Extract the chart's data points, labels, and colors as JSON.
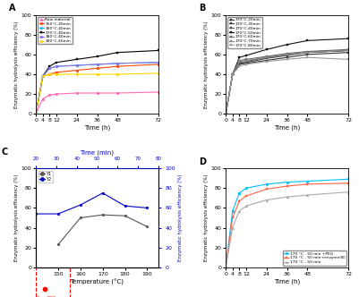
{
  "A": {
    "time": [
      0,
      4,
      8,
      12,
      24,
      36,
      48,
      72
    ],
    "series": [
      {
        "label": "Raw material",
        "color": "#FF69B4",
        "marker": "o",
        "values": [
          0,
          15,
          19,
          20,
          21,
          21,
          21,
          22
        ]
      },
      {
        "label": "150°C-40min",
        "color": "#FF4500",
        "marker": "o",
        "values": [
          0,
          38,
          40,
          42,
          44,
          46,
          48,
          50
        ]
      },
      {
        "label": "160°C-40min",
        "color": "#00BFFF",
        "marker": "o",
        "values": [
          0,
          38,
          46,
          48,
          49,
          50,
          51,
          52
        ]
      },
      {
        "label": "170°C-40min",
        "color": "#000000",
        "marker": "s",
        "values": [
          0,
          38,
          48,
          52,
          55,
          58,
          62,
          64
        ]
      },
      {
        "label": "180°C-40min",
        "color": "#9370DB",
        "marker": "o",
        "values": [
          0,
          38,
          46,
          48,
          49,
          50,
          51,
          52
        ]
      },
      {
        "label": "190°C-40min",
        "color": "#FFD700",
        "marker": "o",
        "values": [
          0,
          38,
          40,
          40,
          40,
          40,
          40,
          41
        ]
      }
    ],
    "xlabel": "Time (h)",
    "ylabel": "Enzymatic hydrolysis efficiency (%)",
    "xlim": [
      0,
      72
    ],
    "ylim": [
      0,
      100
    ],
    "xticks": [
      0,
      4,
      8,
      12,
      24,
      36,
      48,
      72
    ]
  },
  "B": {
    "time": [
      0,
      4,
      8,
      12,
      24,
      36,
      48,
      72
    ],
    "series": [
      {
        "label": "170°C-20min",
        "color": "#333333",
        "marker": "s",
        "values": [
          0,
          40,
          50,
          51,
          54,
          57,
          60,
          62
        ]
      },
      {
        "label": "170°C-30min",
        "color": "#444444",
        "marker": "s",
        "values": [
          0,
          40,
          51,
          52,
          56,
          59,
          62,
          64
        ]
      },
      {
        "label": "170°C-40min",
        "color": "#555555",
        "marker": "s",
        "values": [
          0,
          40,
          52,
          53,
          57,
          60,
          62,
          64
        ]
      },
      {
        "label": "170°C-50min",
        "color": "#111111",
        "marker": "s",
        "values": [
          0,
          40,
          57,
          59,
          65,
          70,
          74,
          76
        ]
      },
      {
        "label": "170°C-60min",
        "color": "#666666",
        "marker": "s",
        "values": [
          0,
          40,
          54,
          55,
          58,
          61,
          63,
          65
        ]
      },
      {
        "label": "170°C-70min",
        "color": "#888888",
        "marker": "s",
        "values": [
          0,
          40,
          53,
          54,
          57,
          60,
          62,
          64
        ]
      },
      {
        "label": "170°C-80min",
        "color": "#999999",
        "marker": "s",
        "values": [
          0,
          40,
          48,
          50,
          53,
          55,
          57,
          55
        ]
      }
    ],
    "xlabel": "Time (h)",
    "ylabel": "Enzymatic hydrolysis efficiency (%)",
    "xlim": [
      0,
      72
    ],
    "ylim": [
      0,
      100
    ],
    "xticks": [
      0,
      4,
      8,
      12,
      24,
      36,
      48,
      72
    ]
  },
  "C": {
    "temperature": [
      150,
      160,
      170,
      180,
      190
    ],
    "temperature_Y2": [
      140,
      150,
      160,
      170,
      180,
      190
    ],
    "time_top": [
      20,
      30,
      40,
      50,
      60,
      70,
      80
    ],
    "time_top_pos": [
      20,
      30,
      40,
      50,
      60,
      70,
      80
    ],
    "Y1": {
      "label": "Y1",
      "color": "#555555",
      "marker": "o",
      "values": [
        23,
        50,
        53,
        52,
        41
      ]
    },
    "Y2": {
      "label": "Y2",
      "color": "#0000CD",
      "marker": "o",
      "values": [
        54,
        54,
        63,
        75,
        62,
        60
      ]
    },
    "raw_bss_val": 23,
    "xlabel": "Temperature (°C)",
    "ylabel_left": "Enzymatic hydrolysis efficiency (%)",
    "ylabel_right": "Enzymatic hydrolysis efficiency (%)",
    "xlim_temp": [
      140,
      195
    ],
    "xlim_time": [
      20,
      80
    ],
    "ylim_left": [
      0,
      100
    ],
    "ylim_right": [
      0,
      100
    ],
    "xticks_temp": [
      150,
      160,
      170,
      180,
      190
    ]
  },
  "D": {
    "time": [
      0,
      4,
      8,
      12,
      24,
      36,
      48,
      72
    ],
    "series": [
      {
        "label": "170 °C - 50 min +PEG",
        "color": "#00BFFF",
        "marker": "o",
        "values": [
          0,
          57,
          75,
          80,
          84,
          86,
          87,
          89
        ]
      },
      {
        "label": "170 °C - 50 min+enzyme(B)",
        "color": "#FF6347",
        "marker": "s",
        "values": [
          0,
          50,
          67,
          72,
          79,
          82,
          84,
          85
        ]
      },
      {
        "label": "170 °C - 50 min",
        "color": "#A9A9A9",
        "marker": "^",
        "values": [
          0,
          40,
          57,
          62,
          68,
          71,
          73,
          76
        ]
      }
    ],
    "xlabel": "Time (h)",
    "ylabel": "Enzymatic hydrolysis efficiency (%)",
    "xlim": [
      0,
      72
    ],
    "ylim": [
      0,
      100
    ],
    "xticks": [
      0,
      4,
      8,
      12,
      24,
      36,
      48,
      72
    ]
  }
}
